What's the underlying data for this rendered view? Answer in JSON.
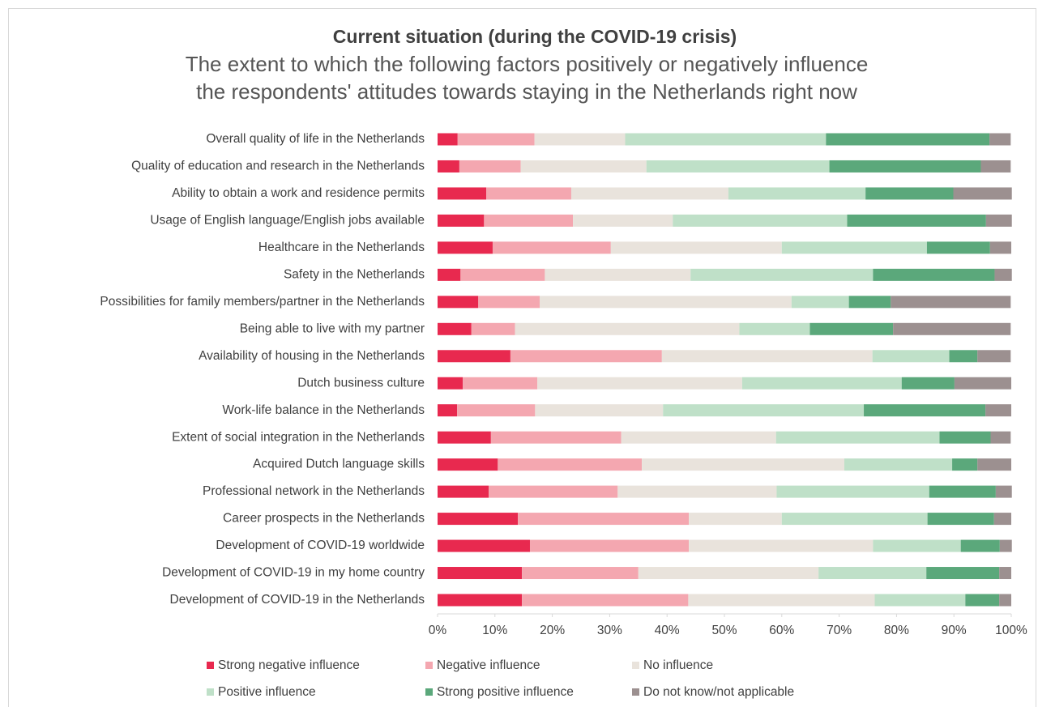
{
  "chart_data": {
    "type": "stacked_barh",
    "title": "Current situation (during the COVID-19 crisis)",
    "subtitle": [
      "The extent to which the following factors positively or negatively influence",
      "the respondents' attitudes towards staying in the Netherlands right now"
    ],
    "categories": [
      "Overall quality of life in the Netherlands",
      "Quality of education and research in the Netherlands",
      "Ability to obtain a work and residence permits",
      "Usage of English language/English jobs available",
      "Healthcare in the Netherlands",
      "Safety in the Netherlands",
      "Possibilities for family members/partner in the Netherlands",
      "Being able to live with my partner",
      "Availability of housing in the Netherlands",
      "Dutch business culture",
      "Work-life balance in the Netherlands",
      "Extent of social integration in the Netherlands",
      "Acquired Dutch language skills",
      "Professional network in the Netherlands",
      "Career prospects in the Netherlands",
      "Development of COVID-19 worldwide",
      "Development of COVID-19 in my home country",
      "Development of COVID-19 in the Netherlands"
    ],
    "series": [
      {
        "name": "Strong negative influence",
        "color": "#e8294f",
        "values": [
          3.5,
          3.8,
          8.5,
          8.1,
          9.6,
          4.0,
          7.1,
          5.9,
          12.7,
          4.4,
          3.4,
          9.3,
          10.5,
          8.9,
          14.0,
          16.1,
          14.7,
          14.7
        ]
      },
      {
        "name": "Negative influence",
        "color": "#f4a7b0",
        "values": [
          13.4,
          10.7,
          14.8,
          15.5,
          20.6,
          14.7,
          10.7,
          7.6,
          26.4,
          13.0,
          13.6,
          22.7,
          25.1,
          22.5,
          29.8,
          27.7,
          20.3,
          29.0
        ]
      },
      {
        "name": "No influence",
        "color": "#e9e3dc",
        "values": [
          15.8,
          21.9,
          27.4,
          17.4,
          29.8,
          25.4,
          43.9,
          39.1,
          36.7,
          35.7,
          22.3,
          27.0,
          35.3,
          27.7,
          16.2,
          32.1,
          31.4,
          32.5
        ]
      },
      {
        "name": "Positive influence",
        "color": "#bfe0c8",
        "values": [
          35.0,
          31.9,
          23.9,
          30.4,
          25.3,
          31.8,
          10.0,
          12.3,
          13.4,
          27.8,
          35.0,
          28.5,
          18.8,
          26.6,
          25.4,
          15.3,
          18.8,
          15.8
        ]
      },
      {
        "name": "Strong positive influence",
        "color": "#5ba87b",
        "values": [
          28.5,
          26.4,
          15.3,
          24.2,
          11.0,
          21.2,
          7.3,
          14.5,
          4.9,
          9.2,
          21.2,
          8.9,
          4.4,
          11.6,
          11.6,
          6.8,
          12.7,
          5.9
        ]
      },
      {
        "name": "Do not know/not applicable",
        "color": "#9c9090",
        "values": [
          3.7,
          5.2,
          10.2,
          4.5,
          3.7,
          3.0,
          20.9,
          20.5,
          5.8,
          9.9,
          4.5,
          3.5,
          5.9,
          2.8,
          3.0,
          2.1,
          2.1,
          2.1
        ]
      }
    ],
    "xlim": [
      0,
      100
    ],
    "xticks": [
      {
        "value": 0,
        "label": "0%"
      },
      {
        "value": 10,
        "label": "10%"
      },
      {
        "value": 20,
        "label": "20%"
      },
      {
        "value": 30,
        "label": "30%"
      },
      {
        "value": 40,
        "label": "40%"
      },
      {
        "value": 50,
        "label": "50%"
      },
      {
        "value": 60,
        "label": "60%"
      },
      {
        "value": 70,
        "label": "70%"
      },
      {
        "value": 80,
        "label": "80%"
      },
      {
        "value": 90,
        "label": "90%"
      },
      {
        "value": 100,
        "label": "100%"
      }
    ],
    "legend": "bottom"
  }
}
